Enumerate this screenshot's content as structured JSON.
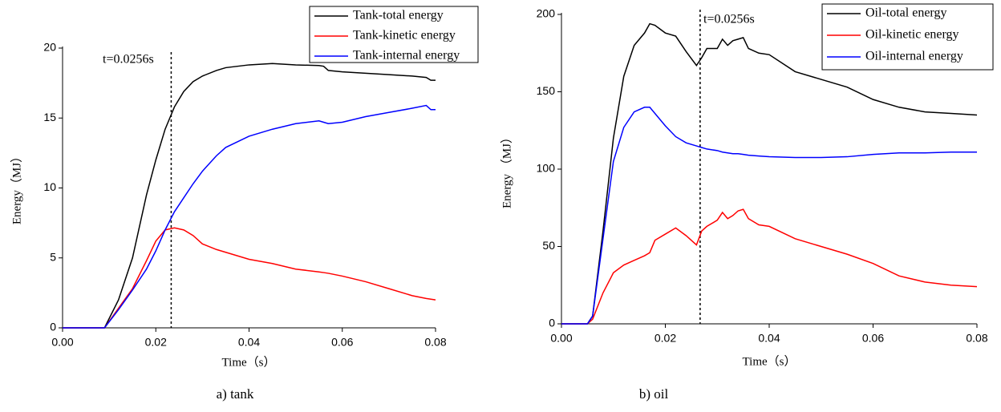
{
  "chart_data": [
    {
      "type": "line",
      "caption": "a) tank",
      "xlabel": "Time（s）",
      "ylabel": "Energy（MJ）",
      "x": [
        0,
        0.009,
        0.012,
        0.015,
        0.018,
        0.02,
        0.022,
        0.024,
        0.026,
        0.028,
        0.03,
        0.033,
        0.035,
        0.04,
        0.045,
        0.05,
        0.055,
        0.056,
        0.057,
        0.06,
        0.065,
        0.07,
        0.075,
        0.078,
        0.079,
        0.08
      ],
      "series": [
        {
          "name": "Tank-total energy",
          "color": "#000000",
          "values": [
            0,
            0,
            2,
            5,
            9.5,
            12,
            14.2,
            15.8,
            16.9,
            17.6,
            18.0,
            18.4,
            18.6,
            18.8,
            18.9,
            18.8,
            18.75,
            18.7,
            18.4,
            18.3,
            18.2,
            18.1,
            18.0,
            17.9,
            17.7,
            17.7
          ]
        },
        {
          "name": "Tank-kinetic energy",
          "color": "#ff0000",
          "values": [
            0,
            0,
            1.4,
            2.8,
            4.8,
            6.2,
            7.0,
            7.15,
            7.0,
            6.6,
            6.0,
            5.6,
            5.4,
            4.9,
            4.6,
            4.2,
            4.0,
            3.95,
            3.9,
            3.7,
            3.3,
            2.8,
            2.3,
            2.1,
            2.05,
            2.0
          ]
        },
        {
          "name": "Tank-internal energy",
          "color": "#0000ff",
          "values": [
            0,
            0,
            1.3,
            2.7,
            4.2,
            5.5,
            7.0,
            8.3,
            9.3,
            10.3,
            11.2,
            12.3,
            12.9,
            13.7,
            14.2,
            14.6,
            14.8,
            14.7,
            14.6,
            14.7,
            15.1,
            15.4,
            15.7,
            15.9,
            15.6,
            15.6
          ]
        }
      ],
      "xlim": [
        0,
        0.08
      ],
      "xticks": [
        {
          "value": 0,
          "label": "0.00"
        },
        {
          "value": 0.02,
          "label": "0.02"
        },
        {
          "value": 0.04,
          "label": "0.04"
        },
        {
          "value": 0.06,
          "label": "0.06"
        },
        {
          "value": 0.08,
          "label": "0.08"
        }
      ],
      "ylim": [
        0,
        20
      ],
      "yticks": [
        0,
        5,
        10,
        15,
        20
      ],
      "annotation": {
        "text": "t=0.0256s",
        "x": 0.0233
      },
      "legend": "upper right"
    },
    {
      "type": "line",
      "caption": "b) oil",
      "xlabel": "Time（s）",
      "ylabel": "Energy （MJ）",
      "x": [
        0,
        0.005,
        0.006,
        0.008,
        0.01,
        0.012,
        0.014,
        0.016,
        0.017,
        0.018,
        0.02,
        0.022,
        0.024,
        0.026,
        0.027,
        0.028,
        0.03,
        0.031,
        0.032,
        0.033,
        0.034,
        0.035,
        0.036,
        0.038,
        0.04,
        0.045,
        0.05,
        0.055,
        0.06,
        0.065,
        0.07,
        0.075,
        0.08
      ],
      "series": [
        {
          "name": "Oil-total energy",
          "color": "#000000",
          "values": [
            0,
            0,
            5,
            60,
            120,
            160,
            180,
            188,
            194,
            193,
            188,
            186,
            176,
            167,
            172,
            178,
            178,
            184,
            180,
            183,
            184,
            185,
            178,
            175,
            174,
            163,
            158,
            153,
            145,
            140,
            137,
            136,
            135
          ]
        },
        {
          "name": "Oil-kinetic energy",
          "color": "#ff0000",
          "values": [
            0,
            0,
            3,
            20,
            33,
            38,
            41,
            44,
            46,
            54,
            58,
            62,
            57,
            51,
            60,
            63,
            67,
            72,
            68,
            70,
            73,
            74,
            68,
            64,
            63,
            55,
            50,
            45,
            39,
            31,
            27,
            25,
            24
          ]
        },
        {
          "name": "Oil-internal energy",
          "color": "#0000ff",
          "values": [
            0,
            0,
            5,
            55,
            105,
            127,
            137,
            140,
            140,
            136,
            128,
            121,
            117,
            115,
            114,
            113,
            112,
            111,
            110.5,
            110,
            110,
            109.5,
            109,
            108.5,
            108,
            107.5,
            107.5,
            108,
            109.5,
            110.5,
            110.5,
            111,
            111
          ]
        }
      ],
      "xlim": [
        0,
        0.08
      ],
      "xticks": [
        {
          "value": 0,
          "label": "0.00"
        },
        {
          "value": 0.02,
          "label": "0.02"
        },
        {
          "value": 0.04,
          "label": "0.04"
        },
        {
          "value": 0.06,
          "label": "0.06"
        },
        {
          "value": 0.08,
          "label": "0.08"
        }
      ],
      "ylim": [
        0,
        200
      ],
      "yticks": [
        0,
        50,
        100,
        150,
        200
      ],
      "annotation": {
        "text": "t=0.0256s",
        "x": 0.0267
      },
      "legend": "upper right"
    }
  ]
}
